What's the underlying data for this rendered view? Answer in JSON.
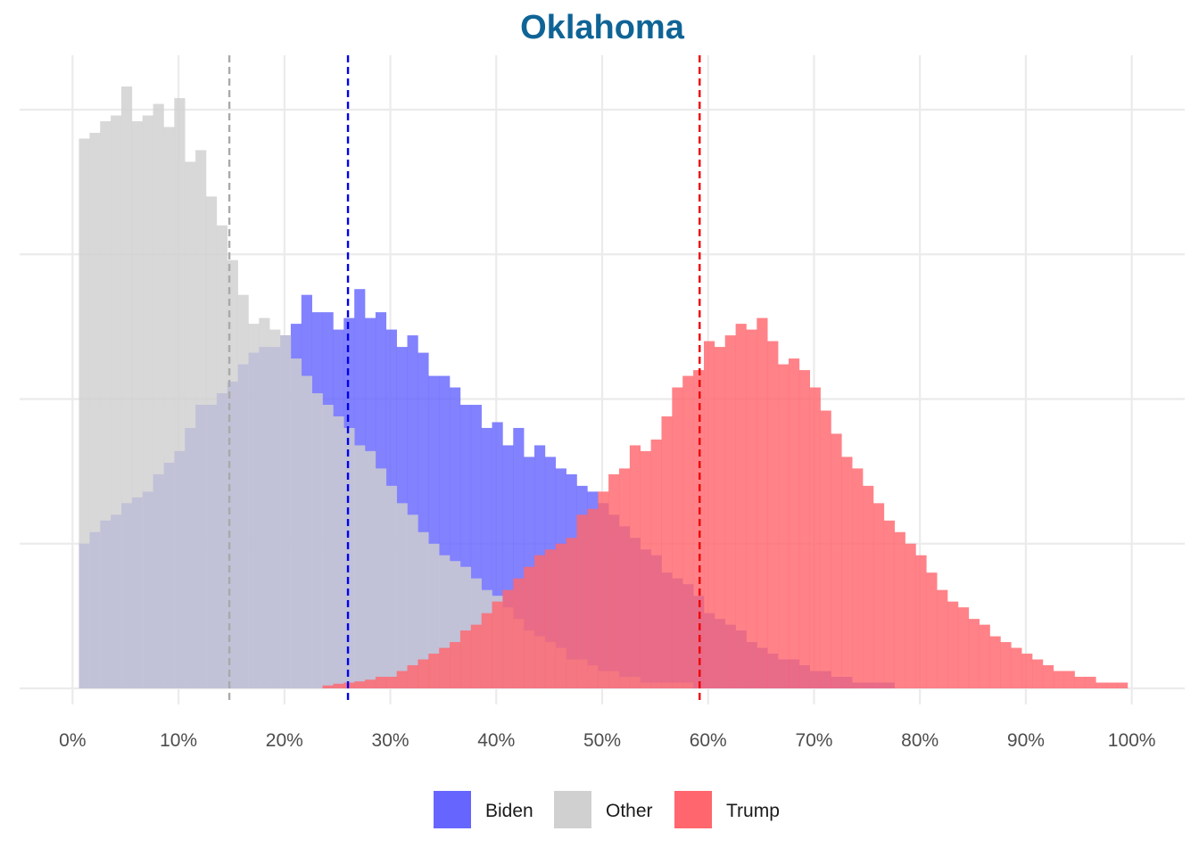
{
  "chart_data": {
    "type": "histogram",
    "title": "Oklahoma",
    "xlabel": "",
    "ylabel": "",
    "xlim": [
      -0.05,
      1.05
    ],
    "ylim": [
      0,
      1.05
    ],
    "x_ticks": [
      0,
      0.1,
      0.2,
      0.3,
      0.4,
      0.5,
      0.6,
      0.7,
      0.8,
      0.9,
      1.0
    ],
    "x_tick_labels": [
      "0%",
      "10%",
      "20%",
      "30%",
      "40%",
      "50%",
      "60%",
      "70%",
      "80%",
      "90%",
      "100%"
    ],
    "y_grid": [
      0.25,
      0.5,
      0.75,
      1.0
    ],
    "y_tick_labels_shown": false,
    "grid": true,
    "legend_position": "bottom",
    "colors": {
      "Biden": "#6666FF",
      "Other": "#D0D0D0",
      "Trump": "#FF666E",
      "title": "#0F6496"
    },
    "series": [
      {
        "name": "Biden",
        "fill": "#6666FF",
        "mean_line": {
          "x": 0.26,
          "color": "#0000EE"
        },
        "bins": [
          [
            0.006,
            0.25
          ],
          [
            0.016,
            0.27
          ],
          [
            0.026,
            0.29
          ],
          [
            0.036,
            0.3
          ],
          [
            0.046,
            0.32
          ],
          [
            0.056,
            0.33
          ],
          [
            0.066,
            0.34
          ],
          [
            0.076,
            0.37
          ],
          [
            0.086,
            0.39
          ],
          [
            0.096,
            0.41
          ],
          [
            0.106,
            0.45
          ],
          [
            0.116,
            0.49
          ],
          [
            0.126,
            0.49
          ],
          [
            0.136,
            0.51
          ],
          [
            0.146,
            0.53
          ],
          [
            0.156,
            0.56
          ],
          [
            0.166,
            0.58
          ],
          [
            0.176,
            0.59
          ],
          [
            0.186,
            0.59
          ],
          [
            0.196,
            0.61
          ],
          [
            0.206,
            0.63
          ],
          [
            0.216,
            0.68
          ],
          [
            0.226,
            0.65
          ],
          [
            0.236,
            0.65
          ],
          [
            0.246,
            0.62
          ],
          [
            0.256,
            0.64
          ],
          [
            0.266,
            0.69
          ],
          [
            0.276,
            0.64
          ],
          [
            0.286,
            0.65
          ],
          [
            0.296,
            0.62
          ],
          [
            0.306,
            0.59
          ],
          [
            0.316,
            0.61
          ],
          [
            0.326,
            0.58
          ],
          [
            0.336,
            0.54
          ],
          [
            0.346,
            0.54
          ],
          [
            0.356,
            0.52
          ],
          [
            0.366,
            0.49
          ],
          [
            0.376,
            0.49
          ],
          [
            0.386,
            0.45
          ],
          [
            0.396,
            0.46
          ],
          [
            0.406,
            0.42
          ],
          [
            0.416,
            0.45
          ],
          [
            0.426,
            0.4
          ],
          [
            0.436,
            0.42
          ],
          [
            0.446,
            0.4
          ],
          [
            0.456,
            0.38
          ],
          [
            0.466,
            0.37
          ],
          [
            0.476,
            0.35
          ],
          [
            0.486,
            0.34
          ],
          [
            0.496,
            0.32
          ],
          [
            0.506,
            0.3
          ],
          [
            0.516,
            0.28
          ],
          [
            0.526,
            0.26
          ],
          [
            0.536,
            0.24
          ],
          [
            0.546,
            0.23
          ],
          [
            0.556,
            0.2
          ],
          [
            0.566,
            0.19
          ],
          [
            0.576,
            0.18
          ],
          [
            0.586,
            0.16
          ],
          [
            0.596,
            0.13
          ],
          [
            0.606,
            0.12
          ],
          [
            0.616,
            0.11
          ],
          [
            0.626,
            0.1
          ],
          [
            0.636,
            0.08
          ],
          [
            0.646,
            0.07
          ],
          [
            0.656,
            0.06
          ],
          [
            0.666,
            0.05
          ],
          [
            0.676,
            0.05
          ],
          [
            0.686,
            0.04
          ],
          [
            0.696,
            0.03
          ],
          [
            0.706,
            0.03
          ],
          [
            0.716,
            0.02
          ],
          [
            0.726,
            0.02
          ],
          [
            0.736,
            0.01
          ],
          [
            0.746,
            0.01
          ],
          [
            0.756,
            0.01
          ],
          [
            0.766,
            0.01
          ]
        ]
      },
      {
        "name": "Other",
        "fill": "#D0D0D0",
        "mean_line": {
          "x": 0.148,
          "color": "#AAAAAA"
        },
        "bins": [
          [
            0.006,
            0.95
          ],
          [
            0.016,
            0.96
          ],
          [
            0.026,
            0.98
          ],
          [
            0.036,
            0.99
          ],
          [
            0.046,
            1.04
          ],
          [
            0.056,
            0.98
          ],
          [
            0.066,
            0.99
          ],
          [
            0.076,
            1.01
          ],
          [
            0.086,
            0.97
          ],
          [
            0.096,
            1.02
          ],
          [
            0.106,
            0.91
          ],
          [
            0.116,
            0.93
          ],
          [
            0.126,
            0.85
          ],
          [
            0.136,
            0.8
          ],
          [
            0.146,
            0.74
          ],
          [
            0.156,
            0.68
          ],
          [
            0.166,
            0.63
          ],
          [
            0.176,
            0.64
          ],
          [
            0.186,
            0.62
          ],
          [
            0.196,
            0.61
          ],
          [
            0.206,
            0.57
          ],
          [
            0.216,
            0.54
          ],
          [
            0.226,
            0.51
          ],
          [
            0.236,
            0.49
          ],
          [
            0.246,
            0.47
          ],
          [
            0.256,
            0.45
          ],
          [
            0.266,
            0.42
          ],
          [
            0.276,
            0.41
          ],
          [
            0.286,
            0.38
          ],
          [
            0.296,
            0.35
          ],
          [
            0.306,
            0.32
          ],
          [
            0.316,
            0.3
          ],
          [
            0.326,
            0.27
          ],
          [
            0.336,
            0.25
          ],
          [
            0.346,
            0.23
          ],
          [
            0.356,
            0.22
          ],
          [
            0.366,
            0.21
          ],
          [
            0.376,
            0.19
          ],
          [
            0.386,
            0.17
          ],
          [
            0.396,
            0.16
          ],
          [
            0.406,
            0.14
          ],
          [
            0.416,
            0.12
          ],
          [
            0.426,
            0.1
          ],
          [
            0.436,
            0.09
          ],
          [
            0.446,
            0.08
          ],
          [
            0.456,
            0.07
          ],
          [
            0.466,
            0.05
          ],
          [
            0.476,
            0.05
          ],
          [
            0.486,
            0.04
          ],
          [
            0.496,
            0.03
          ],
          [
            0.506,
            0.03
          ],
          [
            0.516,
            0.02
          ],
          [
            0.526,
            0.02
          ],
          [
            0.536,
            0.01
          ],
          [
            0.546,
            0.01
          ],
          [
            0.556,
            0.01
          ],
          [
            0.566,
            0.01
          ],
          [
            0.576,
            0.01
          ]
        ]
      },
      {
        "name": "Trump",
        "fill": "#FF666E",
        "mean_line": {
          "x": 0.592,
          "color": "#EE0000"
        },
        "bins": [
          [
            0.236,
            0.005
          ],
          [
            0.246,
            0.008
          ],
          [
            0.256,
            0.01
          ],
          [
            0.266,
            0.012
          ],
          [
            0.276,
            0.015
          ],
          [
            0.286,
            0.02
          ],
          [
            0.296,
            0.02
          ],
          [
            0.306,
            0.03
          ],
          [
            0.316,
            0.04
          ],
          [
            0.326,
            0.05
          ],
          [
            0.336,
            0.06
          ],
          [
            0.346,
            0.07
          ],
          [
            0.356,
            0.08
          ],
          [
            0.366,
            0.1
          ],
          [
            0.376,
            0.11
          ],
          [
            0.386,
            0.13
          ],
          [
            0.396,
            0.15
          ],
          [
            0.406,
            0.17
          ],
          [
            0.416,
            0.19
          ],
          [
            0.426,
            0.21
          ],
          [
            0.436,
            0.23
          ],
          [
            0.446,
            0.24
          ],
          [
            0.456,
            0.25
          ],
          [
            0.466,
            0.26
          ],
          [
            0.476,
            0.3
          ],
          [
            0.486,
            0.31
          ],
          [
            0.496,
            0.34
          ],
          [
            0.506,
            0.37
          ],
          [
            0.516,
            0.38
          ],
          [
            0.526,
            0.42
          ],
          [
            0.536,
            0.41
          ],
          [
            0.546,
            0.43
          ],
          [
            0.556,
            0.47
          ],
          [
            0.566,
            0.52
          ],
          [
            0.576,
            0.54
          ],
          [
            0.586,
            0.55
          ],
          [
            0.596,
            0.6
          ],
          [
            0.606,
            0.59
          ],
          [
            0.616,
            0.61
          ],
          [
            0.626,
            0.63
          ],
          [
            0.636,
            0.62
          ],
          [
            0.646,
            0.64
          ],
          [
            0.656,
            0.6
          ],
          [
            0.666,
            0.56
          ],
          [
            0.676,
            0.57
          ],
          [
            0.686,
            0.55
          ],
          [
            0.696,
            0.52
          ],
          [
            0.706,
            0.48
          ],
          [
            0.716,
            0.44
          ],
          [
            0.726,
            0.4
          ],
          [
            0.736,
            0.38
          ],
          [
            0.746,
            0.35
          ],
          [
            0.756,
            0.32
          ],
          [
            0.766,
            0.29
          ],
          [
            0.776,
            0.27
          ],
          [
            0.786,
            0.25
          ],
          [
            0.796,
            0.23
          ],
          [
            0.806,
            0.2
          ],
          [
            0.816,
            0.17
          ],
          [
            0.826,
            0.15
          ],
          [
            0.836,
            0.14
          ],
          [
            0.846,
            0.12
          ],
          [
            0.856,
            0.11
          ],
          [
            0.866,
            0.09
          ],
          [
            0.876,
            0.08
          ],
          [
            0.886,
            0.07
          ],
          [
            0.896,
            0.06
          ],
          [
            0.906,
            0.05
          ],
          [
            0.916,
            0.04
          ],
          [
            0.926,
            0.03
          ],
          [
            0.936,
            0.03
          ],
          [
            0.946,
            0.02
          ],
          [
            0.956,
            0.02
          ],
          [
            0.966,
            0.01
          ],
          [
            0.976,
            0.01
          ],
          [
            0.986,
            0.01
          ]
        ]
      }
    ]
  }
}
